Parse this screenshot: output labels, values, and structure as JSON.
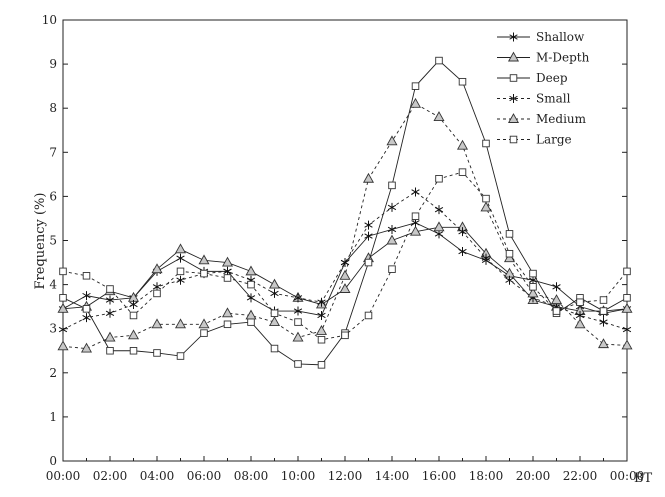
{
  "chart_data": {
    "type": "line",
    "title": "",
    "xlabel": "BT",
    "ylabel": "Frequency (%)",
    "ylim": [
      0,
      10
    ],
    "yticks": [
      "0",
      "1",
      "2",
      "3",
      "4",
      "5",
      "6",
      "7",
      "8",
      "9",
      "10"
    ],
    "xticks": [
      "00:00",
      "02:00",
      "04:00",
      "06:00",
      "08:00",
      "10:00",
      "12:00",
      "14:00",
      "16:00",
      "18:00",
      "20:00",
      "22:00",
      "00:00"
    ],
    "x": [
      0,
      1,
      2,
      3,
      4,
      5,
      6,
      7,
      8,
      9,
      10,
      11,
      12,
      13,
      14,
      15,
      16,
      17,
      18,
      19,
      20,
      21,
      22,
      23,
      24
    ],
    "grid": false,
    "legend_position": "top-right",
    "series": [
      {
        "name": "Shallow",
        "line": "solid",
        "marker": "star",
        "values": [
          3.45,
          3.75,
          3.65,
          3.7,
          4.3,
          4.6,
          4.3,
          4.3,
          3.7,
          3.4,
          3.4,
          3.3,
          4.5,
          5.1,
          5.25,
          5.4,
          5.15,
          4.75,
          4.55,
          4.2,
          4.1,
          3.95,
          3.5,
          3.35,
          3.45
        ]
      },
      {
        "name": "M-Depth",
        "line": "solid",
        "marker": "triangle",
        "values": [
          3.45,
          3.5,
          3.85,
          3.7,
          4.35,
          4.8,
          4.55,
          4.5,
          4.3,
          4.0,
          3.7,
          3.55,
          3.9,
          4.6,
          5.0,
          5.2,
          5.3,
          5.3,
          4.7,
          4.25,
          3.65,
          3.5,
          3.4,
          3.4,
          3.45
        ]
      },
      {
        "name": "Deep",
        "line": "solid",
        "marker": "square",
        "values": [
          3.7,
          3.45,
          2.5,
          2.5,
          2.45,
          2.38,
          2.9,
          3.1,
          3.15,
          2.55,
          2.2,
          2.18,
          2.9,
          4.5,
          6.25,
          8.5,
          9.08,
          8.6,
          7.2,
          5.15,
          4.25,
          3.35,
          3.7,
          3.4,
          3.7
        ]
      },
      {
        "name": "Small",
        "line": "dashed",
        "marker": "star",
        "values": [
          2.98,
          3.25,
          3.35,
          3.55,
          3.95,
          4.1,
          4.25,
          4.3,
          4.1,
          3.8,
          3.7,
          3.6,
          4.5,
          5.35,
          5.75,
          6.1,
          5.7,
          5.2,
          4.6,
          4.1,
          3.7,
          3.5,
          3.3,
          3.15,
          2.98
        ]
      },
      {
        "name": "Medium",
        "line": "dashed",
        "marker": "triangle",
        "values": [
          2.6,
          2.55,
          2.8,
          2.85,
          3.1,
          3.1,
          3.1,
          3.35,
          3.3,
          3.15,
          2.8,
          2.95,
          4.2,
          6.4,
          7.25,
          8.1,
          7.8,
          7.15,
          5.75,
          4.6,
          3.8,
          3.65,
          3.1,
          2.65,
          2.62
        ]
      },
      {
        "name": "Large",
        "line": "dashed",
        "marker": "square",
        "values": [
          4.3,
          4.2,
          3.9,
          3.3,
          3.8,
          4.3,
          4.25,
          4.15,
          4.0,
          3.35,
          3.15,
          2.75,
          2.85,
          3.3,
          4.35,
          5.55,
          6.4,
          6.55,
          5.95,
          4.7,
          3.95,
          3.4,
          3.6,
          3.65,
          4.3
        ]
      }
    ]
  }
}
